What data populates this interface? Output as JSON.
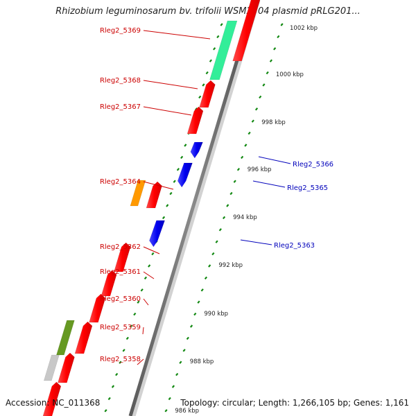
{
  "title": "Rhizobium leguminosarum bv. trifolii WSM2304 plasmid pRLG201...",
  "accession": "Accession: NC_011368",
  "topology": "Topology: circular; Length: 1,266,105 bp; Genes: 1,161",
  "colors": {
    "backbone_dark": "#6e6e6e",
    "backbone_light": "#d2d2d2",
    "forward_gene": "#ff1a1a",
    "reverse_gene": "#1c1cf0",
    "label_forward": "#cc0000",
    "label_reverse": "#0000bb",
    "tick": "#118811",
    "highlight_green": "#33ee99",
    "highlight_orange": "#ff9900",
    "highlight_olive": "#669922",
    "highlight_grey": "#c8c8c8"
  },
  "ruler": {
    "kbp_labels": [
      "1002 kbp",
      "1000 kbp",
      "998 kbp",
      "996 kbp",
      "994 kbp",
      "992 kbp",
      "990 kbp",
      "988 kbp",
      "986 kbp"
    ]
  },
  "labels": {
    "left": [
      "Rleg2_5369",
      "Rleg2_5368",
      "Rleg2_5367",
      "Rleg2_5364",
      "Rleg2_5362",
      "Rleg2_5361",
      "Rleg2_5360",
      "Rleg2_5359",
      "Rleg2_5358"
    ],
    "right": [
      "Rleg2_5366",
      "Rleg2_5365",
      "Rleg2_5363"
    ]
  }
}
